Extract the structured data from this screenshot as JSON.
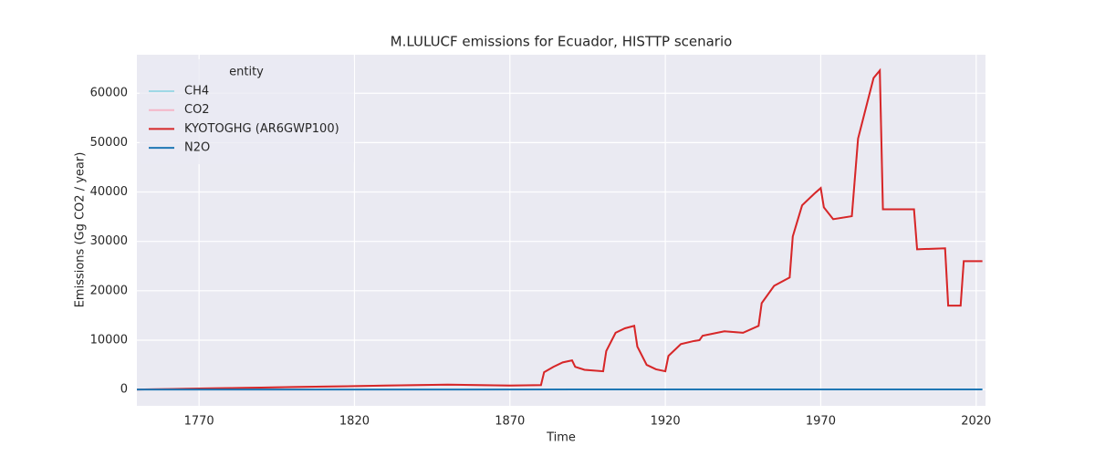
{
  "chart_data": {
    "type": "line",
    "title": "M.LULUCF emissions for Ecuador, HISTTP scenario",
    "xlabel": "Time",
    "ylabel": "Emissions (Gg CO2 / year)",
    "legend_title": "entity",
    "legend_loc": "upper left",
    "grid": true,
    "xlim": [
      1750,
      2023
    ],
    "ylim": [
      -3300,
      67800
    ],
    "xticks": [
      1770,
      1820,
      1870,
      1920,
      1970,
      2020
    ],
    "yticks": [
      0,
      10000,
      20000,
      30000,
      40000,
      50000,
      60000
    ],
    "series": [
      {
        "name": "CH4",
        "color": "#9fd8e6",
        "x": [
          1750,
          2022
        ],
        "values": [
          20,
          30
        ]
      },
      {
        "name": "CO2",
        "color": "#f4b6c8",
        "x": [
          1750,
          1760,
          1770,
          1780,
          1790,
          1800,
          1810,
          1820,
          1830,
          1840,
          1850,
          1860,
          1870,
          1880,
          1881,
          1884,
          1887,
          1890,
          1891,
          1894,
          1900,
          1901,
          1904,
          1907,
          1910,
          1911,
          1914,
          1917,
          1920,
          1921,
          1925,
          1929,
          1931,
          1932,
          1939,
          1945,
          1950,
          1951,
          1955,
          1960,
          1961,
          1964,
          1968,
          1970,
          1971,
          1974,
          1980,
          1982,
          1985,
          1987,
          1989,
          1990,
          2000,
          2001,
          2010,
          2011,
          2015,
          2016,
          2022
        ],
        "values": [
          0,
          100,
          200,
          300,
          400,
          500,
          600,
          700,
          800,
          900,
          1000,
          900,
          800,
          900,
          3500,
          4600,
          5500,
          5900,
          4600,
          4000,
          3700,
          7800,
          11500,
          12400,
          12900,
          8700,
          5000,
          4100,
          3700,
          6800,
          9200,
          9800,
          10000,
          10900,
          11800,
          11500,
          12900,
          17500,
          21000,
          22700,
          31000,
          37300,
          39700,
          40800,
          36900,
          34500,
          35100,
          50800,
          58200,
          63100,
          64600,
          36500,
          36500,
          28400,
          28600,
          17000,
          17000,
          26000,
          26000
        ]
      },
      {
        "name": "KYOTOGHG (AR6GWP100)",
        "color": "#d62728",
        "x": [
          1750,
          1760,
          1770,
          1780,
          1790,
          1800,
          1810,
          1820,
          1830,
          1840,
          1850,
          1860,
          1870,
          1880,
          1881,
          1884,
          1887,
          1890,
          1891,
          1894,
          1900,
          1901,
          1904,
          1907,
          1910,
          1911,
          1914,
          1917,
          1920,
          1921,
          1925,
          1929,
          1931,
          1932,
          1939,
          1945,
          1950,
          1951,
          1955,
          1960,
          1961,
          1964,
          1968,
          1970,
          1971,
          1974,
          1980,
          1982,
          1985,
          1987,
          1989,
          1990,
          2000,
          2001,
          2010,
          2011,
          2015,
          2016,
          2022
        ],
        "values": [
          0,
          100,
          200,
          300,
          400,
          500,
          600,
          700,
          800,
          900,
          1000,
          900,
          800,
          900,
          3500,
          4600,
          5500,
          5900,
          4600,
          4000,
          3700,
          7800,
          11500,
          12400,
          12900,
          8700,
          5000,
          4100,
          3700,
          6800,
          9200,
          9800,
          10000,
          10900,
          11800,
          11500,
          12900,
          17500,
          21000,
          22700,
          31000,
          37300,
          39700,
          40800,
          36900,
          34500,
          35100,
          50800,
          58200,
          63100,
          64600,
          36500,
          36500,
          28400,
          28600,
          17000,
          17000,
          26000,
          26000
        ]
      },
      {
        "name": "N2O",
        "color": "#1f77b4",
        "x": [
          1750,
          2022
        ],
        "values": [
          10,
          15
        ]
      }
    ]
  }
}
